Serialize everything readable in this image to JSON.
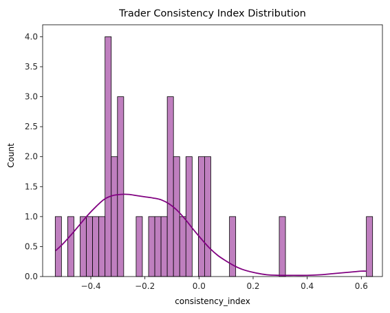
{
  "chart_data": {
    "type": "bar",
    "subtype": "histogram-with-kde",
    "title": "Trader Consistency Index Distribution",
    "xlabel": "consistency_index",
    "ylabel": "Count",
    "xlim": [
      -0.578,
      0.678
    ],
    "ylim": [
      0,
      4.2
    ],
    "xticks": [
      -0.4,
      -0.2,
      0.0,
      0.2,
      0.4,
      0.6
    ],
    "xtick_labels": [
      "−0.4",
      "−0.2",
      "0.0",
      "0.2",
      "0.4",
      "0.6"
    ],
    "yticks": [
      0.0,
      0.5,
      1.0,
      1.5,
      2.0,
      2.5,
      3.0,
      3.5,
      4.0
    ],
    "ytick_labels": [
      "0.0",
      "0.5",
      "1.0",
      "1.5",
      "2.0",
      "2.5",
      "3.0",
      "3.5",
      "4.0"
    ],
    "grid": false,
    "bar_color": "#bf7fbf",
    "bar_edge_color": "#000000",
    "kde_color": "#800080",
    "bins": {
      "start": -0.5314,
      "width": 0.023,
      "counts": [
        1,
        0,
        1,
        0,
        1,
        1,
        1,
        1,
        4,
        2,
        3,
        0,
        0,
        1,
        0,
        1,
        1,
        1,
        3,
        2,
        1,
        2,
        0,
        2,
        2,
        0,
        0,
        0,
        1,
        0,
        0,
        0,
        0,
        0,
        0,
        0,
        1,
        0,
        0,
        0,
        0,
        0,
        0,
        0,
        0,
        0,
        0,
        0,
        0,
        0,
        1
      ]
    },
    "kde": {
      "x": [
        -0.53,
        -0.5,
        -0.47,
        -0.44,
        -0.41,
        -0.38,
        -0.35,
        -0.32,
        -0.29,
        -0.26,
        -0.23,
        -0.2,
        -0.17,
        -0.14,
        -0.11,
        -0.08,
        -0.05,
        -0.02,
        0.01,
        0.04,
        0.07,
        0.1,
        0.13,
        0.16,
        0.2,
        0.25,
        0.3,
        0.35,
        0.4,
        0.45,
        0.5,
        0.55,
        0.6,
        0.62
      ],
      "y": [
        0.43,
        0.56,
        0.71,
        0.87,
        1.03,
        1.17,
        1.29,
        1.35,
        1.37,
        1.37,
        1.35,
        1.33,
        1.31,
        1.28,
        1.21,
        1.1,
        0.95,
        0.78,
        0.62,
        0.47,
        0.35,
        0.26,
        0.18,
        0.12,
        0.07,
        0.03,
        0.02,
        0.02,
        0.02,
        0.03,
        0.05,
        0.07,
        0.09,
        0.09
      ]
    }
  }
}
